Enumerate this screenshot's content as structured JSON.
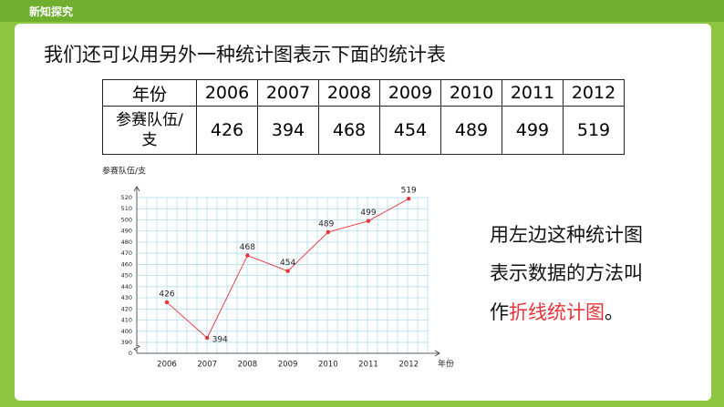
{
  "header": {
    "title": "新知探究"
  },
  "heading": "我们还可以用另外一种统计图表示下面的统计表",
  "table": {
    "header": [
      "年份",
      "2006",
      "2007",
      "2008",
      "2009",
      "2010",
      "2011",
      "2012"
    ],
    "rows": [
      [
        "参赛队伍/支",
        426,
        394,
        468,
        454,
        489,
        499,
        519
      ]
    ]
  },
  "chart_data": {
    "type": "line",
    "y_label": "参赛队伍/支",
    "x_label": "年份",
    "categories": [
      "2006",
      "2007",
      "2008",
      "2009",
      "2010",
      "2011",
      "2012"
    ],
    "values": [
      426,
      394,
      468,
      454,
      489,
      499,
      519
    ],
    "color": "#e8333a",
    "ylim": [
      0,
      520
    ],
    "yticks": [
      0,
      390,
      400,
      410,
      420,
      430,
      440,
      450,
      460,
      470,
      480,
      490,
      500,
      510,
      520
    ],
    "axis_break": true,
    "grid": true
  },
  "side_text": {
    "lines": [
      "用左边这种统计图",
      "表示数据的方法叫"
    ],
    "last": {
      "before": "作",
      "highlight": "折线统计图",
      "after": "。"
    }
  }
}
